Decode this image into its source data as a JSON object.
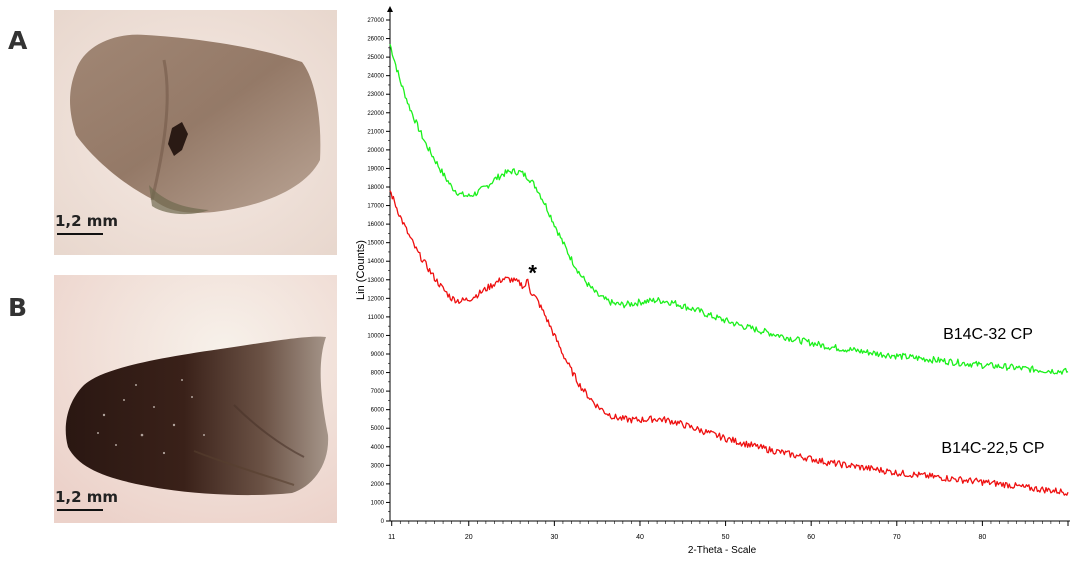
{
  "panels": [
    {
      "letter": "A",
      "scale": "1,2 mm"
    },
    {
      "letter": "B",
      "scale": "1,2 mm"
    }
  ],
  "colors": {
    "green": "#1cf01c",
    "red": "#ee1010"
  },
  "chart_data": {
    "type": "line",
    "xlabel": "2-Theta - Scale",
    "ylabel": "Lin (Counts)",
    "xlim": [
      10.8,
      90
    ],
    "ylim": [
      0,
      27000
    ],
    "xticks": [
      11,
      20,
      30,
      40,
      50,
      60,
      70,
      80
    ],
    "yticks": [
      0,
      1000,
      2000,
      3000,
      4000,
      5000,
      6000,
      7000,
      8000,
      9000,
      10000,
      11000,
      12000,
      13000,
      14000,
      15000,
      16000,
      17000,
      18000,
      19000,
      20000,
      21000,
      22000,
      23000,
      24000,
      25000,
      26000,
      27000
    ],
    "series": [
      {
        "name": "B14C-32 CP",
        "color": "#1cf01c",
        "points": [
          [
            10.8,
            25700
          ],
          [
            12,
            23700
          ],
          [
            13,
            22400
          ],
          [
            14,
            21300
          ],
          [
            15,
            20300
          ],
          [
            16,
            19500
          ],
          [
            17,
            18700
          ],
          [
            18,
            18000
          ],
          [
            19,
            17600
          ],
          [
            20,
            17500
          ],
          [
            21,
            17700
          ],
          [
            22,
            18000
          ],
          [
            23,
            18400
          ],
          [
            24,
            18700
          ],
          [
            25,
            18850
          ],
          [
            26,
            18800
          ],
          [
            27,
            18500
          ],
          [
            28,
            17900
          ],
          [
            29,
            17000
          ],
          [
            30,
            16000
          ],
          [
            31,
            15000
          ],
          [
            32,
            14100
          ],
          [
            33,
            13300
          ],
          [
            34,
            12700
          ],
          [
            35,
            12200
          ],
          [
            36,
            11900
          ],
          [
            37,
            11700
          ],
          [
            38,
            11650
          ],
          [
            39,
            11700
          ],
          [
            40,
            11800
          ],
          [
            41,
            11850
          ],
          [
            42,
            11900
          ],
          [
            43,
            11850
          ],
          [
            44,
            11750
          ],
          [
            45,
            11600
          ],
          [
            46,
            11450
          ],
          [
            47,
            11300
          ],
          [
            48,
            11100
          ],
          [
            50,
            10800
          ],
          [
            52,
            10500
          ],
          [
            55,
            10150
          ],
          [
            58,
            9800
          ],
          [
            60,
            9600
          ],
          [
            62,
            9400
          ],
          [
            65,
            9200
          ],
          [
            68,
            9000
          ],
          [
            70,
            8900
          ],
          [
            73,
            8750
          ],
          [
            75,
            8650
          ],
          [
            78,
            8500
          ],
          [
            80,
            8400
          ],
          [
            83,
            8300
          ],
          [
            85,
            8200
          ],
          [
            88,
            8100
          ],
          [
            90,
            8050
          ]
        ]
      },
      {
        "name": "B14C-22,5 CP",
        "color": "#ee1010",
        "points": [
          [
            10.8,
            17800
          ],
          [
            12,
            16400
          ],
          [
            13,
            15400
          ],
          [
            14,
            14500
          ],
          [
            15,
            13800
          ],
          [
            16,
            13100
          ],
          [
            17,
            12500
          ],
          [
            18,
            12000
          ],
          [
            19,
            11850
          ],
          [
            20,
            11950
          ],
          [
            21,
            12200
          ],
          [
            22,
            12500
          ],
          [
            23,
            12800
          ],
          [
            24,
            13050
          ],
          [
            25,
            13000
          ],
          [
            26,
            12800
          ],
          [
            26.5,
            12600
          ],
          [
            26.9,
            13000
          ],
          [
            27.2,
            12400
          ],
          [
            28,
            11900
          ],
          [
            29,
            11000
          ],
          [
            30,
            10000
          ],
          [
            31,
            9000
          ],
          [
            32,
            8100
          ],
          [
            33,
            7300
          ],
          [
            34,
            6700
          ],
          [
            35,
            6200
          ],
          [
            36,
            5850
          ],
          [
            37,
            5600
          ],
          [
            38,
            5500
          ],
          [
            39,
            5450
          ],
          [
            40,
            5450
          ],
          [
            41,
            5480
          ],
          [
            42,
            5500
          ],
          [
            43,
            5450
          ],
          [
            44,
            5350
          ],
          [
            45,
            5200
          ],
          [
            46,
            5050
          ],
          [
            47,
            4900
          ],
          [
            48,
            4750
          ],
          [
            50,
            4450
          ],
          [
            52,
            4200
          ],
          [
            55,
            3850
          ],
          [
            58,
            3550
          ],
          [
            60,
            3350
          ],
          [
            62,
            3150
          ],
          [
            65,
            2950
          ],
          [
            68,
            2750
          ],
          [
            70,
            2600
          ],
          [
            73,
            2450
          ],
          [
            75,
            2350
          ],
          [
            78,
            2200
          ],
          [
            80,
            2100
          ],
          [
            83,
            1950
          ],
          [
            85,
            1800
          ],
          [
            88,
            1650
          ],
          [
            90,
            1550
          ]
        ]
      }
    ],
    "annotations": [
      {
        "text": "*",
        "x": 27.0,
        "y": 13600
      }
    ],
    "series_labels": [
      "B14C-32 CP",
      "B14C-22,5 CP"
    ]
  }
}
